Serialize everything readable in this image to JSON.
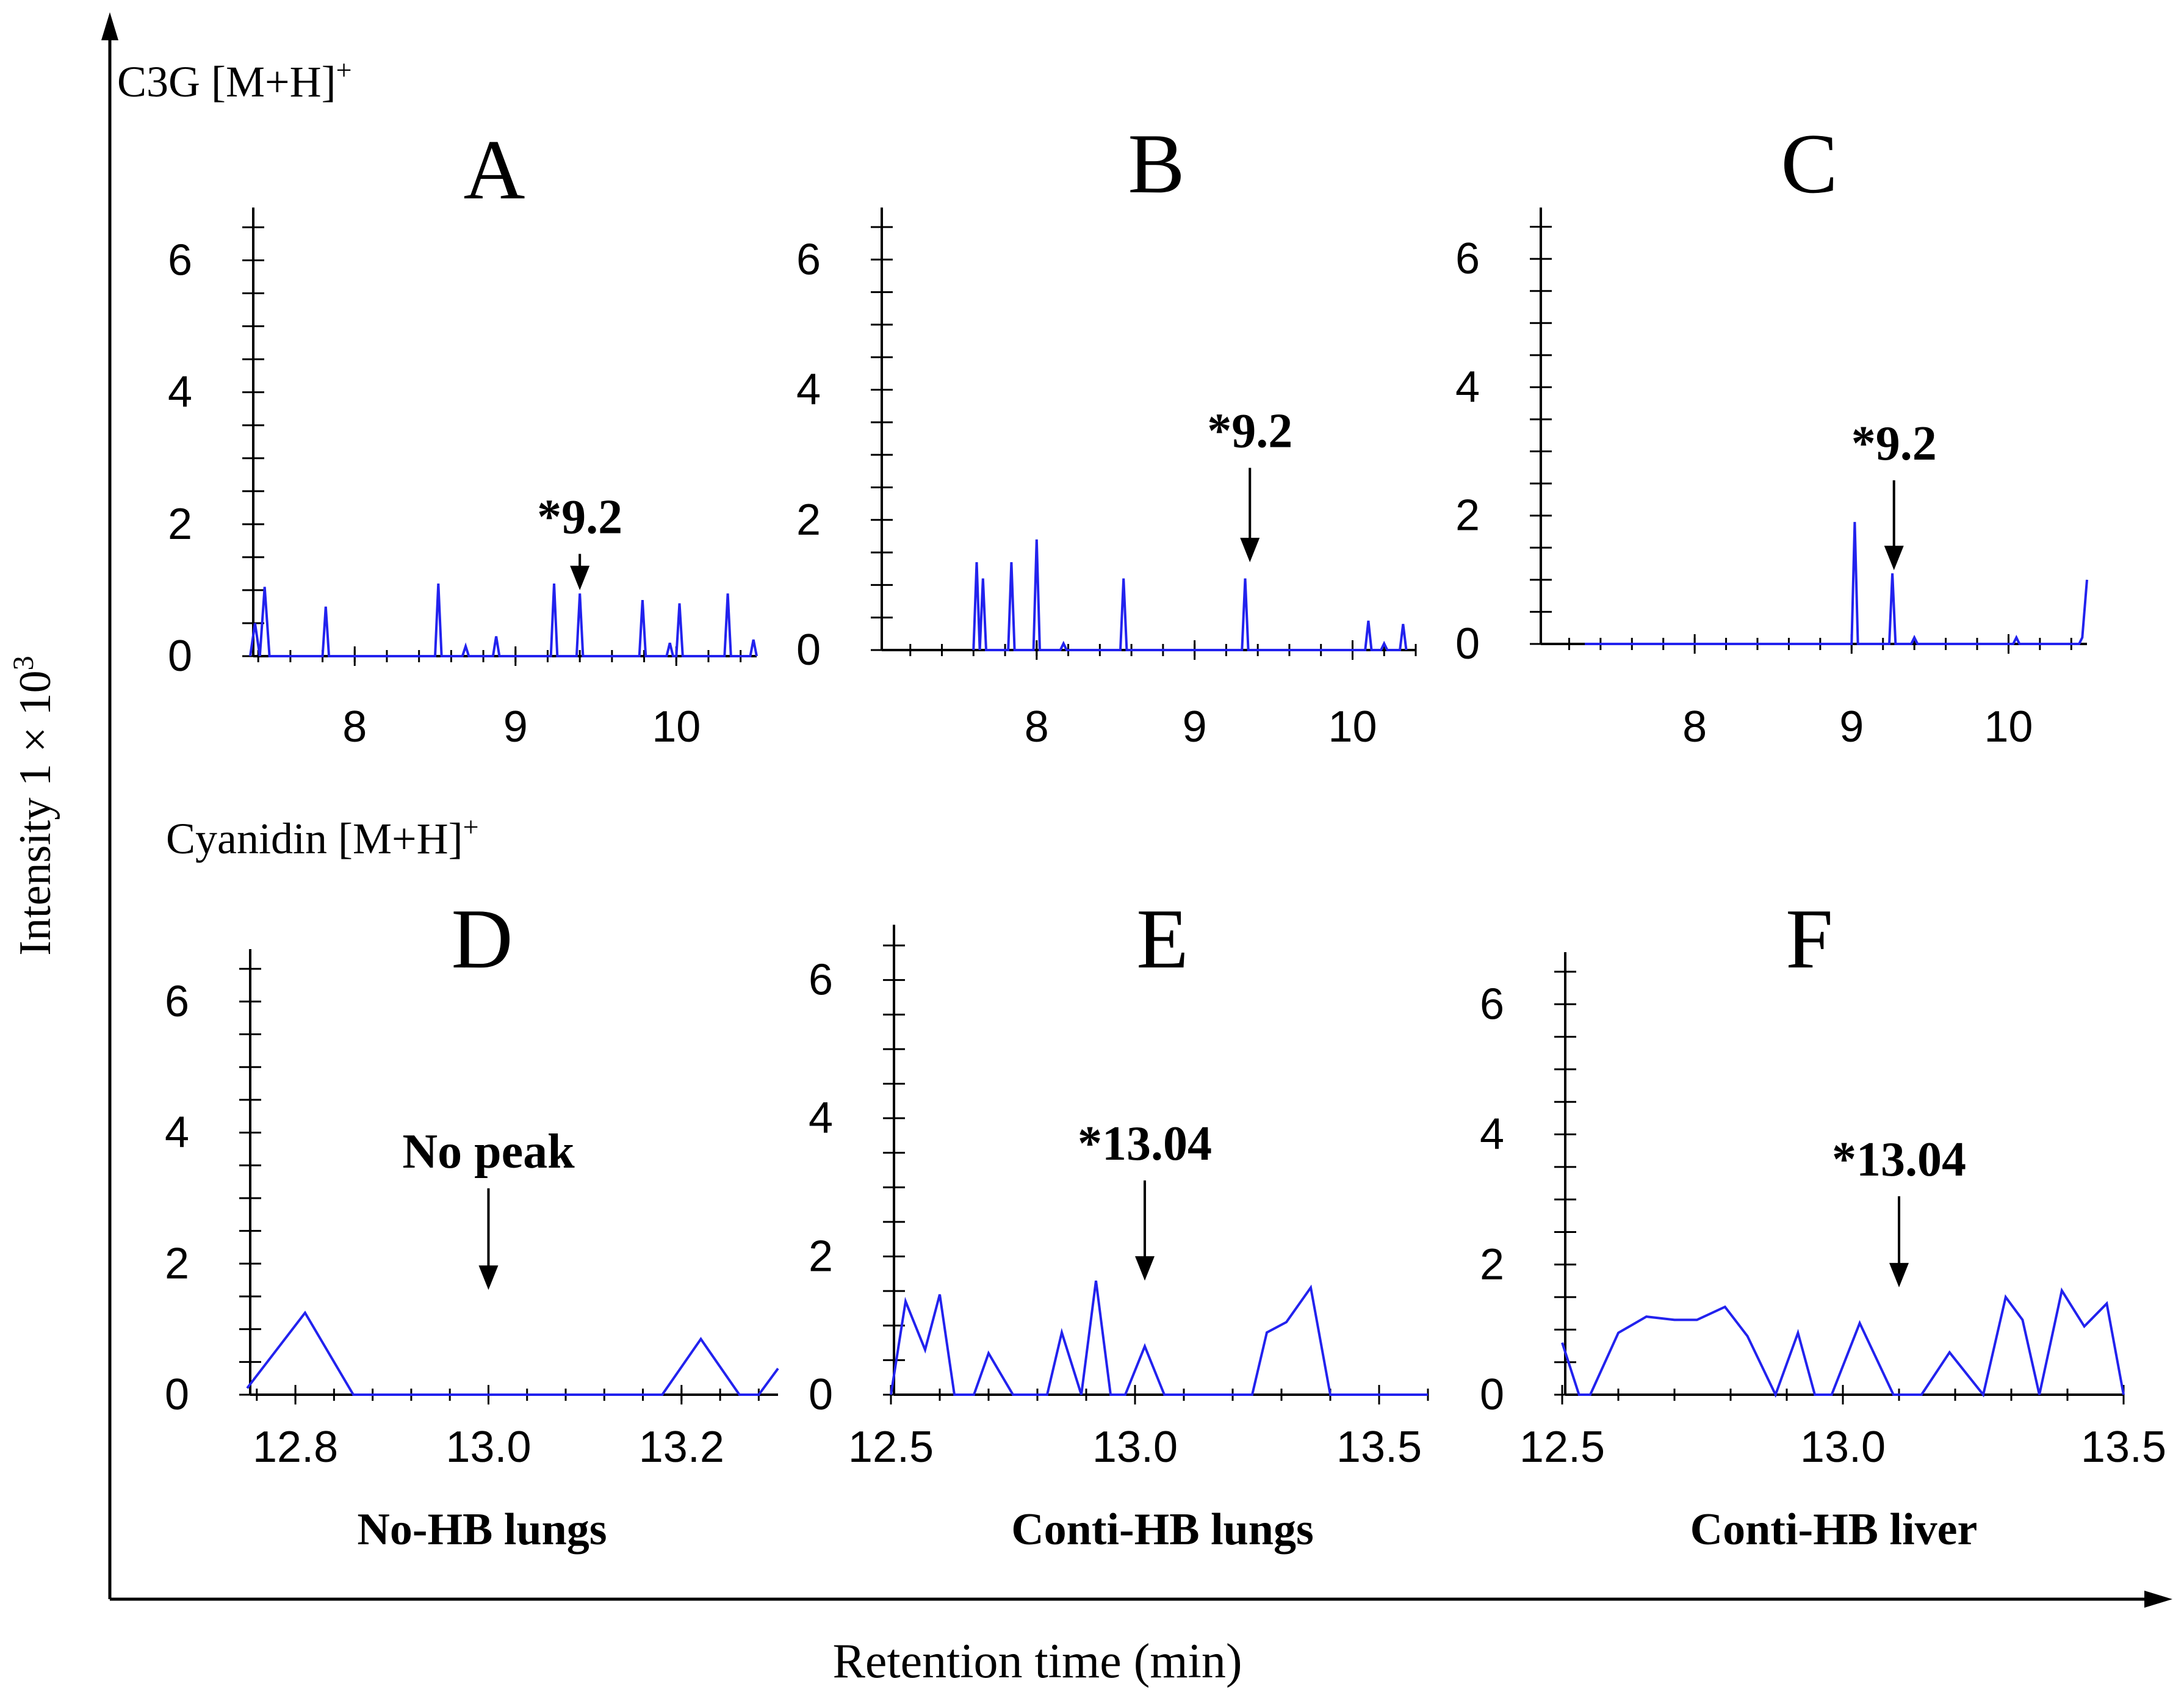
{
  "figure": {
    "y_axis_label": "Intensity 1 × 10",
    "y_axis_label_exp": "3",
    "x_axis_label": "Retention time (min)",
    "row1_label": "C3G [M+H]",
    "row1_label_sup": "+",
    "row2_label": "Cyanidin [M+H]",
    "row2_label_sup": "+",
    "col_labels": [
      "No-HB lungs",
      "Conti-HB lungs",
      "Conti-HB liver"
    ],
    "line_color": "#2222ee"
  },
  "chart_data": [
    {
      "type": "line",
      "panel": "A",
      "ylim": [
        0,
        6.8
      ],
      "yticks": [
        0,
        2,
        4,
        6
      ],
      "xlim": [
        7.35,
        10.5
      ],
      "xticks": [
        8,
        9,
        10
      ],
      "xtick_labels": [
        "8",
        "9",
        "10"
      ],
      "annotation": {
        "label": "*9.2",
        "x": 9.4,
        "arrow_top": 1.55,
        "arrow_bottom": 1.0
      },
      "series": [
        {
          "name": "C3G [M+H]+",
          "x": [
            7.35,
            7.38,
            7.41,
            7.44,
            7.47,
            7.5,
            7.8,
            7.82,
            7.84,
            8.5,
            8.52,
            8.54,
            8.67,
            8.69,
            8.71,
            8.86,
            8.88,
            8.9,
            9.22,
            9.24,
            9.26,
            9.38,
            9.4,
            9.42,
            9.77,
            9.79,
            9.81,
            9.94,
            9.96,
            9.98,
            10.0,
            10.02,
            10.04,
            10.3,
            10.32,
            10.34,
            10.46,
            10.48,
            10.5
          ],
          "y": [
            0,
            0.5,
            0,
            1.05,
            0,
            0,
            0,
            0.75,
            0,
            0,
            1.1,
            0,
            0,
            0.15,
            0,
            0,
            0.3,
            0,
            0,
            1.1,
            0,
            0,
            0.95,
            0,
            0,
            0.85,
            0,
            0,
            0.2,
            0,
            0,
            0.8,
            0,
            0,
            0.95,
            0,
            0,
            0.25,
            0
          ]
        }
      ]
    },
    {
      "type": "line",
      "panel": "B",
      "ylim": [
        0,
        6.8
      ],
      "yticks": [
        0,
        2,
        4,
        6
      ],
      "xlim": [
        7.0,
        10.4
      ],
      "xticks": [
        8,
        9,
        10
      ],
      "xtick_labels": [
        "8",
        "9",
        "10"
      ],
      "annotation": {
        "label": "*9.2",
        "x": 9.35,
        "arrow_top": 2.8,
        "arrow_bottom": 1.35
      },
      "series": [
        {
          "name": "C3G [M+H]+",
          "x": [
            7.6,
            7.62,
            7.64,
            7.66,
            7.68,
            7.7,
            7.82,
            7.84,
            7.86,
            7.98,
            8.0,
            8.02,
            8.15,
            8.17,
            8.19,
            8.53,
            8.55,
            8.57,
            9.3,
            9.32,
            9.34,
            10.08,
            10.1,
            10.12,
            10.18,
            10.2,
            10.22,
            10.3,
            10.32,
            10.34
          ],
          "y": [
            0,
            1.35,
            0,
            1.1,
            0,
            0,
            0,
            1.35,
            0,
            0,
            1.7,
            0,
            0,
            0.1,
            0,
            0,
            1.1,
            0,
            0,
            1.1,
            0,
            0,
            0.45,
            0,
            0,
            0.1,
            0,
            0,
            0.4,
            0
          ]
        }
      ]
    },
    {
      "type": "line",
      "panel": "C",
      "ylim": [
        0,
        6.8
      ],
      "yticks": [
        0,
        2,
        4,
        6
      ],
      "xlim": [
        7.0,
        10.5
      ],
      "xticks": [
        8,
        9,
        10
      ],
      "xtick_labels": [
        "8",
        "9",
        "10"
      ],
      "annotation": {
        "label": "*9.2",
        "x": 9.27,
        "arrow_top": 2.55,
        "arrow_bottom": 1.15
      },
      "series": [
        {
          "name": "C3G [M+H]+",
          "x": [
            7.3,
            7.32,
            7.34,
            7.36,
            7.38,
            8.18,
            8.2,
            8.22,
            9.0,
            9.02,
            9.04,
            9.24,
            9.26,
            9.28,
            9.38,
            9.4,
            9.42,
            10.03,
            10.05,
            10.07,
            10.45,
            10.47,
            10.5
          ],
          "y": [
            0,
            0,
            0,
            0,
            0,
            0,
            0,
            0,
            0,
            1.9,
            0,
            0,
            1.1,
            0,
            0,
            0.1,
            0,
            0,
            0.1,
            0,
            0,
            0.1,
            1.0
          ]
        }
      ]
    },
    {
      "type": "line",
      "panel": "D",
      "ylim": [
        0,
        6.8
      ],
      "yticks": [
        0,
        2,
        4,
        6
      ],
      "xlim": [
        12.75,
        13.3
      ],
      "xticks": [
        12.8,
        13.0,
        13.2
      ],
      "xtick_labels": [
        "12.8",
        "13.0",
        "13.2"
      ],
      "annotation": {
        "label": "No peak",
        "x": 13.0,
        "arrow_top": 3.15,
        "arrow_bottom": 1.6
      },
      "series": [
        {
          "name": "Cyanidin [M+H]+",
          "x": [
            12.75,
            12.81,
            12.86,
            13.18,
            13.22,
            13.26,
            13.28,
            13.3
          ],
          "y": [
            0.1,
            1.25,
            0,
            0,
            0.85,
            0,
            0,
            0.4
          ]
        }
      ]
    },
    {
      "type": "line",
      "panel": "E",
      "ylim": [
        0,
        6.8
      ],
      "yticks": [
        0,
        2,
        4,
        6
      ],
      "xlim": [
        12.5,
        13.6
      ],
      "xticks": [
        12.5,
        13.0,
        13.5
      ],
      "xtick_labels": [
        "12.5",
        "13.0",
        "13.5"
      ],
      "annotation": {
        "label": "*13.04",
        "x": 13.02,
        "arrow_top": 3.1,
        "arrow_bottom": 1.65
      },
      "series": [
        {
          "name": "Cyanidin [M+H]+",
          "x": [
            12.5,
            12.53,
            12.57,
            12.6,
            12.63,
            12.67,
            12.7,
            12.75,
            12.82,
            12.85,
            12.89,
            12.92,
            12.95,
            12.98,
            13.02,
            13.06,
            13.24,
            13.27,
            13.31,
            13.36,
            13.4,
            13.6
          ],
          "y": [
            0,
            1.35,
            0.65,
            1.45,
            0,
            0,
            0.6,
            0,
            0,
            0.9,
            0,
            1.65,
            0,
            0,
            0.7,
            0,
            0,
            0.9,
            1.05,
            1.55,
            0,
            0
          ]
        }
      ]
    },
    {
      "type": "line",
      "panel": "F",
      "ylim": [
        0,
        6.8
      ],
      "yticks": [
        0,
        2,
        4,
        6
      ],
      "xlim": [
        12.5,
        13.5
      ],
      "xticks": [
        12.5,
        13.0,
        13.5
      ],
      "xtick_labels": [
        "12.5",
        "13.0",
        "13.5"
      ],
      "annotation": {
        "label": "*13.04",
        "x": 13.1,
        "arrow_top": 3.05,
        "arrow_bottom": 1.65
      },
      "series": [
        {
          "name": "Cyanidin [M+H]+",
          "x": [
            12.5,
            12.53,
            12.55,
            12.6,
            12.65,
            12.7,
            12.74,
            12.79,
            12.83,
            12.88,
            12.92,
            12.95,
            12.98,
            13.03,
            13.09,
            13.12,
            13.14,
            13.19,
            13.25,
            13.29,
            13.32,
            13.35,
            13.39,
            13.43,
            13.47,
            13.5
          ],
          "y": [
            0.8,
            0,
            0,
            0.95,
            1.2,
            1.15,
            1.15,
            1.35,
            0.9,
            0,
            0.95,
            0,
            0,
            1.1,
            0,
            0,
            0,
            0.65,
            0,
            1.5,
            1.15,
            0,
            1.6,
            1.05,
            1.4,
            0
          ]
        }
      ]
    }
  ]
}
